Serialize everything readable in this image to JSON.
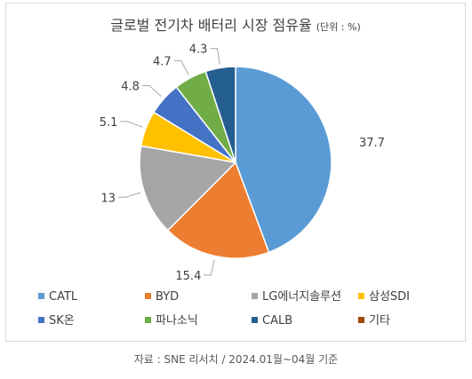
{
  "chart_data": {
    "type": "pie",
    "title": "글로벌 전기차 배터리 시장 점유율",
    "title_unit": "(단위 : %)",
    "categories": [
      "CATL",
      "BYD",
      "LG에너지솔루션",
      "삼성SDI",
      "SK온",
      "파나소닉",
      "CALB",
      "기타"
    ],
    "values": [
      37.7,
      15.4,
      13,
      5.1,
      4.8,
      4.7,
      4.3,
      0
    ],
    "value_labels": [
      "37.7",
      "15.4",
      "13",
      "5.1",
      "4.8",
      "4.7",
      "4.3",
      ""
    ],
    "colors": [
      "#5b9bd5",
      "#ed7d31",
      "#a5a5a5",
      "#ffc000",
      "#4472c4",
      "#70ad47",
      "#255e91",
      "#9e480e"
    ],
    "start_angle_deg": 0,
    "direction": "clockwise",
    "legend_position": "bottom"
  },
  "source_note": "자료 : SNE 리서치 / 2024.01월~04월 기준"
}
